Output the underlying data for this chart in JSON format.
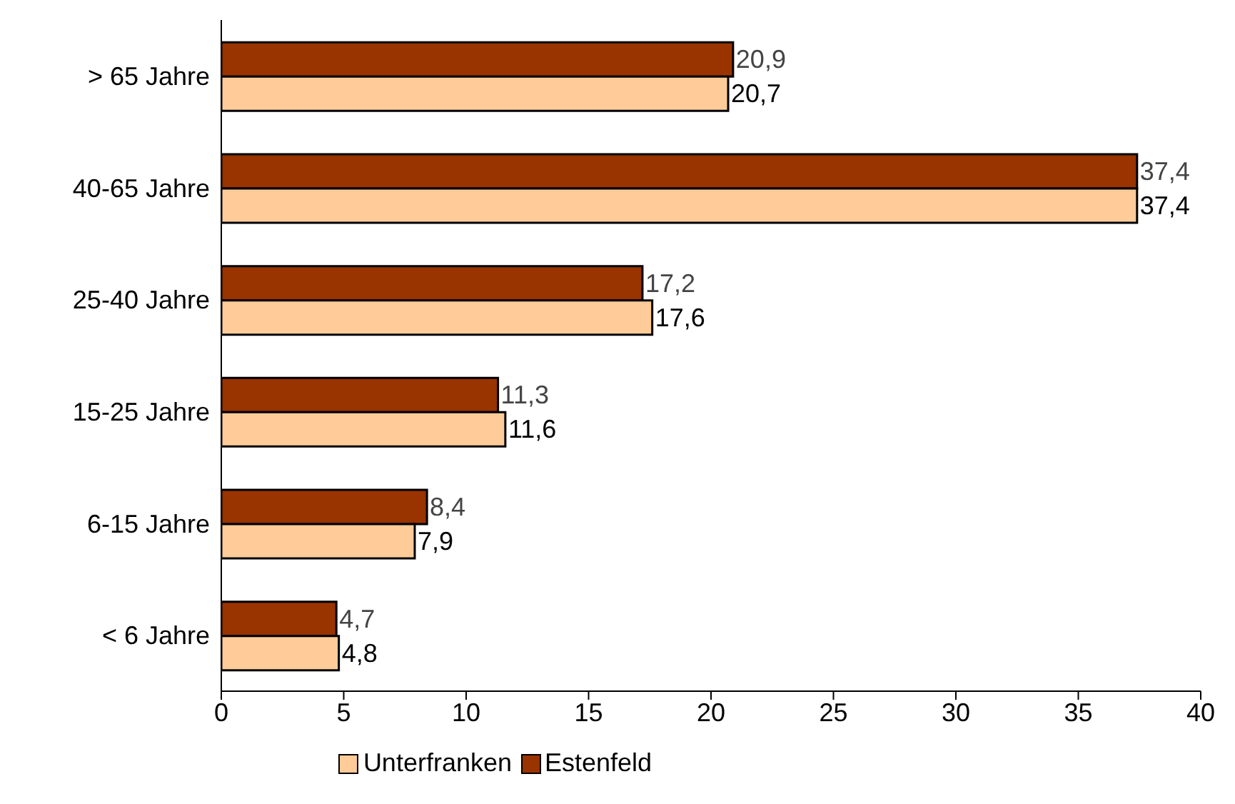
{
  "chart_data": {
    "type": "bar",
    "orientation": "horizontal",
    "categories": [
      "> 65 Jahre",
      "40-65 Jahre",
      "25-40 Jahre",
      "15-25 Jahre",
      "6-15 Jahre",
      "< 6 Jahre"
    ],
    "series": [
      {
        "name": "Estenfeld",
        "color": "#993300",
        "values": [
          20.9,
          37.4,
          17.2,
          11.3,
          8.4,
          4.7
        ],
        "value_labels": [
          "20,9",
          "37,4",
          "17,2",
          "11,3",
          "8,4",
          "4,7"
        ]
      },
      {
        "name": "Unterfranken",
        "color": "#ffcc99",
        "values": [
          20.7,
          37.4,
          17.6,
          11.6,
          7.9,
          4.8
        ],
        "value_labels": [
          "20,7",
          "37,4",
          "17,6",
          "11,6",
          "7,9",
          "4,8"
        ]
      }
    ],
    "xlim": [
      0,
      40
    ],
    "xticks": [
      0,
      5,
      10,
      15,
      20,
      25,
      30,
      35,
      40
    ],
    "grid": false,
    "legend": "bottom"
  }
}
